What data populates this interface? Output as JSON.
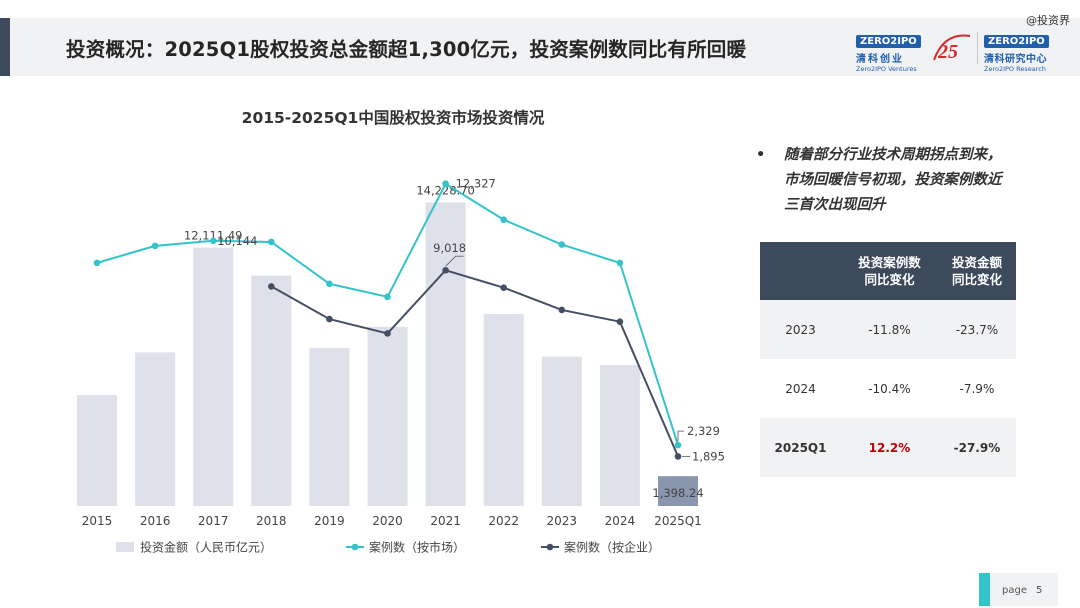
{
  "header": {
    "title": "投资概况：2025Q1股权投资总金额超1,300亿元，投资案例数同比有所回暖",
    "watermark": "@投资界",
    "logo1": {
      "box": "ZERO2IPO",
      "cn": "清科创业",
      "en": "Zero2IPO Ventures"
    },
    "logo25": "25",
    "logo2": {
      "box": "ZERO2IPO",
      "cn": "清科研究中心",
      "en": "Zero2IPO Research"
    }
  },
  "chart_data": {
    "type": "bar",
    "title": "2015-2025Q1中国股权投资市场投资情况",
    "categories": [
      "2015",
      "2016",
      "2017",
      "2018",
      "2019",
      "2020",
      "2021",
      "2022",
      "2023",
      "2024",
      "2025Q1"
    ],
    "series": [
      {
        "name": "投资金额（人民币亿元）",
        "kind": "bar",
        "color": "#dfe1ea",
        "highlight_color": "#8a96ad",
        "values": [
          5200,
          7200,
          12111.49,
          10800,
          7400,
          8400,
          14228.7,
          9000,
          7000,
          6600,
          1398.24
        ],
        "labels": [
          "",
          "",
          "12,111.49",
          "",
          "",
          "",
          "14,228.70",
          "",
          "",
          "",
          "1,398.24"
        ]
      },
      {
        "name": "案例数（按市场）",
        "kind": "line",
        "color": "#33c3cb",
        "values": [
          9300,
          9950,
          10144,
          10100,
          8500,
          8000,
          12327,
          10950,
          10000,
          9300,
          2329
        ],
        "labels": [
          "",
          "",
          "10,144",
          "",
          "",
          "",
          "12,327",
          "",
          "",
          "",
          "2,329"
        ]
      },
      {
        "name": "案例数（按企业）",
        "kind": "line",
        "color": "#454f63",
        "values": [
          null,
          null,
          null,
          8400,
          7150,
          6600,
          9018,
          8350,
          7500,
          7050,
          1895
        ],
        "labels": [
          "",
          "",
          "",
          "",
          "",
          "",
          "9,018",
          "",
          "",
          "",
          "1,895"
        ]
      }
    ],
    "ylim_amount": [
      0,
      15000
    ],
    "ylim_cases": [
      0,
      14000
    ],
    "grid": false,
    "legend_position": "bottom"
  },
  "side": {
    "bullet_marker": "•",
    "bullet": "随着部分行业技术周期拐点到来，市场回暖信号初现，投资案例数近三首次出现回升"
  },
  "table": {
    "headers": [
      "",
      "投资案例数\n同比变化",
      "投资金额\n同比变化"
    ],
    "rows": [
      [
        "2023",
        "-11.8%",
        "-23.7%"
      ],
      [
        "2024",
        "-10.4%",
        "-7.9%"
      ],
      [
        "2025Q1",
        "12.2%",
        "-27.9%"
      ]
    ],
    "highlight_color": "#c00000"
  },
  "footer": {
    "label": "page",
    "number": "5"
  }
}
